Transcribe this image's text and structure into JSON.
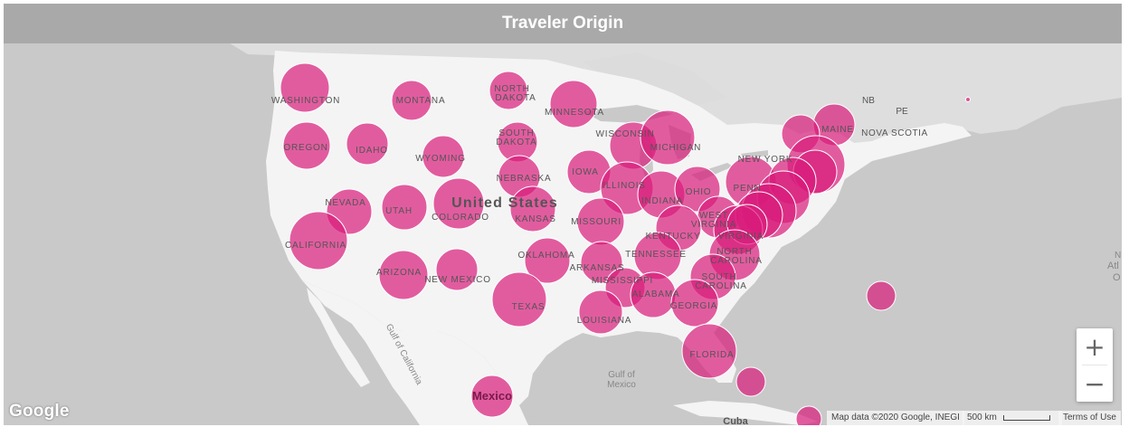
{
  "title": "Traveler Origin",
  "map_labels": {
    "country": "United States",
    "mexico": "Mexico",
    "cuba": "Cuba",
    "gulf_california": "Gulf of California",
    "gulf_mexico_1": "Gulf of",
    "gulf_mexico_2": "Mexico",
    "nb": "NB",
    "pe": "PE",
    "nova_scotia": "NOVA SCOTIA",
    "atlantic_1": "N",
    "atlantic_2": "Atl",
    "atlantic_3": "O",
    "states": [
      "WASHINGTON",
      "MONTANA",
      "NORTH",
      "DAKOTA",
      "MINNESOTA",
      "OREGON",
      "IDAHO",
      "SOUTH",
      "DAKOTA",
      "WYOMING",
      "WISCONSIN",
      "MICHIGAN",
      "MAINE",
      "NEBRASKA",
      "IOWA",
      "NEVADA",
      "UTAH",
      "COLORADO",
      "KANSAS",
      "ILLINOIS",
      "INDIANA",
      "OHIO",
      "NEW YORK",
      "PENN",
      "CALIFORNIA",
      "MISSOURI",
      "KENTUCKY",
      "WEST",
      "VIRGINIA",
      "VIRGINIA",
      "OKLAHOMA",
      "TENNESSEE",
      "NORTH",
      "CAROLINA",
      "ARIZONA",
      "NEW MEXICO",
      "ARKANSAS",
      "MISSISSIPPI",
      "SOUTH",
      "CAROLINA",
      "ALABAMA",
      "GEORGIA",
      "TEXAS",
      "LOUISIANA",
      "FLORIDA"
    ]
  },
  "colors": {
    "bubble": "#d81b7a",
    "land": "#f4f4f4",
    "water": "#c9c9c9",
    "header": "#a9a9a9"
  },
  "zoom": {
    "in": "+",
    "out": "−"
  },
  "attribution": {
    "google": "Google",
    "data": "Map data ©2020 Google, INEGI",
    "scale": "500 km",
    "terms": "Terms of Use"
  }
}
